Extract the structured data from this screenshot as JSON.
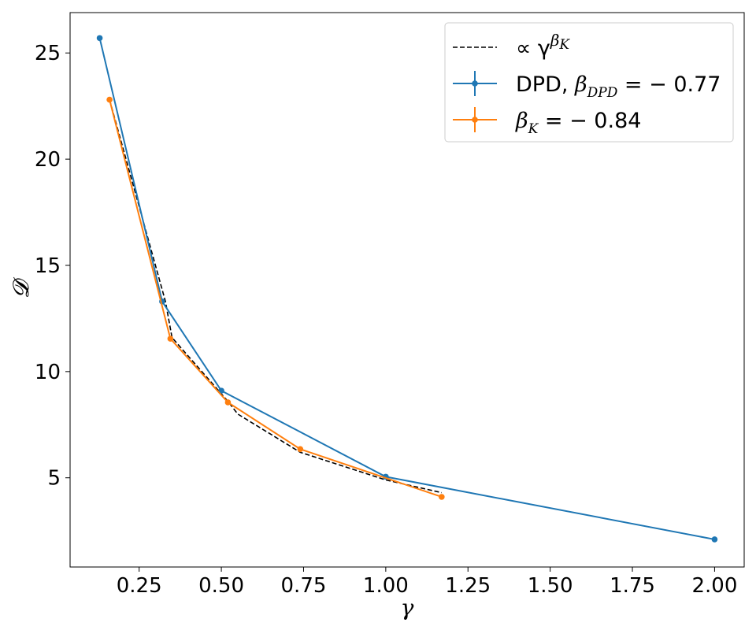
{
  "chart_data": {
    "type": "line",
    "title": "",
    "xlabel": "γ",
    "ylabel": "𝓓",
    "xlim": [
      0.04,
      2.09
    ],
    "ylim": [
      0.8,
      26.9
    ],
    "xticks": [
      0.25,
      0.5,
      0.75,
      1.0,
      1.25,
      1.5,
      1.75,
      2.0
    ],
    "xtick_labels": [
      "0.25",
      "0.50",
      "0.75",
      "1.00",
      "1.25",
      "1.50",
      "1.75",
      "2.00"
    ],
    "yticks": [
      5,
      10,
      15,
      20,
      25
    ],
    "ytick_labels": [
      "5",
      "10",
      "15",
      "20",
      "25"
    ],
    "grid": false,
    "legend_position": "top-right",
    "series": [
      {
        "name": "∝ γ^βK",
        "label_parts": {
          "prefix": "∝ γ",
          "sup_main": "β",
          "sup_sub": "K"
        },
        "style": "dashed",
        "color": "#000000",
        "x": [
          0.16,
          0.33,
          0.35,
          0.52,
          0.55,
          0.74,
          1.0,
          1.17
        ],
        "y": [
          22.8,
          13.3,
          11.6,
          8.6,
          8.0,
          6.2,
          4.9,
          4.3
        ]
      },
      {
        "name": "DPD, βDPD = −0.77",
        "label_parts": {
          "prefix": "DPD, ",
          "math": "β",
          "sub": "DPD",
          "suffix": " = − 0.77"
        },
        "style": "solid-markers",
        "color": "#1f77b4",
        "x": [
          0.13,
          0.32,
          0.5,
          1.0,
          2.0
        ],
        "y": [
          25.7,
          13.3,
          9.1,
          5.05,
          2.1
        ]
      },
      {
        "name": "βK = −0.84",
        "label_parts": {
          "prefix": "",
          "math": "β",
          "sub": "K",
          "suffix": " = − 0.84"
        },
        "style": "solid-markers",
        "color": "#ff7f0e",
        "x": [
          0.16,
          0.345,
          0.52,
          0.74,
          1.17
        ],
        "y": [
          22.8,
          11.55,
          8.55,
          6.35,
          4.1
        ]
      }
    ]
  }
}
